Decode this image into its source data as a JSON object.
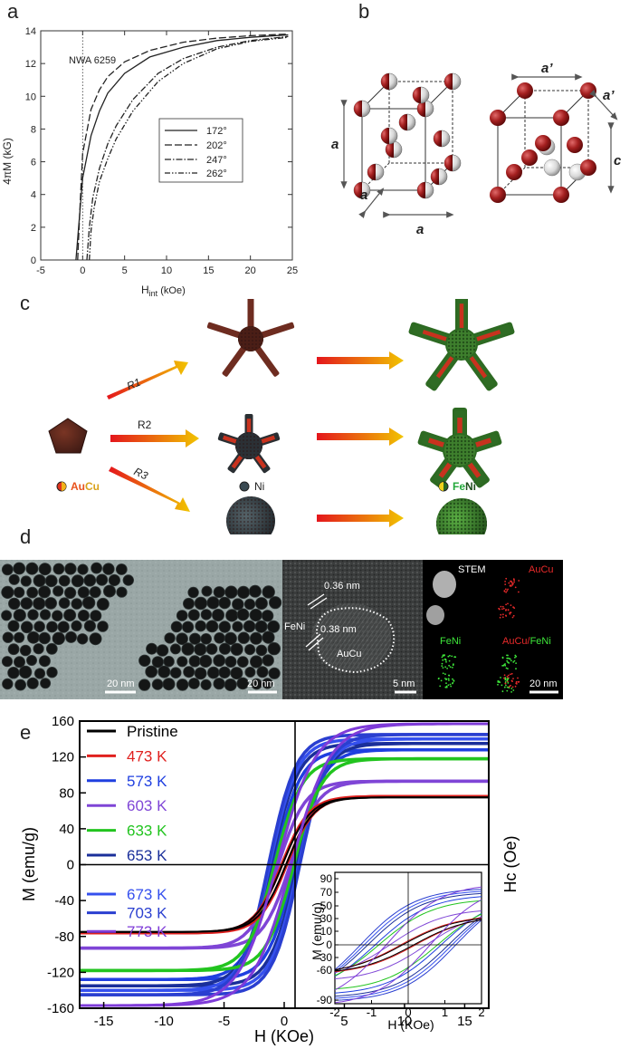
{
  "panel_labels": {
    "a": "a",
    "b": "b",
    "c": "c",
    "d": "d",
    "e": "e"
  },
  "panel_a": {
    "sample_label": "NWA 6259",
    "xlabel": "H",
    "xlabel_sub": "int",
    "xlabel_unit": "(kOe)",
    "ylabel": "4πM (kG)",
    "xticks": [
      "-5",
      "0",
      "5",
      "10",
      "15",
      "20",
      "25"
    ],
    "yticks": [
      "0",
      "2",
      "4",
      "6",
      "8",
      "10",
      "12",
      "14"
    ],
    "legend": [
      "172°",
      "202°",
      "247°",
      "262°"
    ]
  },
  "panel_b": {
    "labels_left": [
      "a",
      "a",
      "a"
    ],
    "labels_right": [
      "a’",
      "a’",
      "c"
    ]
  },
  "panel_c": {
    "routes": [
      "R1",
      "R2",
      "R3"
    ],
    "legend_aucu": [
      "Au",
      "Cu"
    ],
    "legend_ni": "Ni",
    "legend_feni": [
      "Fe",
      "Ni"
    ]
  },
  "panel_d": {
    "scale_bars": [
      "20 nm",
      "20 nm",
      "5 nm",
      "20 nm"
    ],
    "hrtem_labels": {
      "d1": "0.36 nm",
      "d2": "0.38 nm",
      "shell": "FeNi",
      "core": "AuCu"
    },
    "eds_labels": {
      "stem": "STEM",
      "aucu": "AuCu",
      "feni": "FeNi",
      "overlay_a": "AuCu/",
      "overlay_b": "FeNi"
    }
  },
  "panel_e": {
    "ylabel": "M (emu/g)",
    "xlabel": "H (KOe)",
    "right_label": "Hc (Oe)",
    "xticks": [
      "-15",
      "-10",
      "-5",
      "0",
      "5",
      "10",
      "15"
    ],
    "yticks": [
      "160",
      "120",
      "80",
      "40",
      "0",
      "-40",
      "-80",
      "-120",
      "-160"
    ],
    "legend": [
      {
        "label": "Pristine",
        "color": "#000000"
      },
      {
        "label": "473 K",
        "color": "#e0201e"
      },
      {
        "label": "573 K",
        "color": "#1f3fe0"
      },
      {
        "label": "603 K",
        "color": "#7f45d6"
      },
      {
        "label": "633 K",
        "color": "#22c41f"
      },
      {
        "label": "653 K",
        "color": "#1a2f9a"
      },
      {
        "label": "673 K",
        "color": "#3550ee"
      },
      {
        "label": "703 K",
        "color": "#2a3fd0"
      },
      {
        "label": "773 K",
        "color": "#7f3cd8"
      }
    ],
    "inset": {
      "ylabel": "M (emu/g)",
      "xlabel": "H (KOe)",
      "xticks": [
        "-2",
        "-1",
        "0",
        "1",
        "2"
      ],
      "yticks": [
        "90",
        "70",
        "50",
        "30",
        "10",
        "0",
        "-30",
        "-60",
        "-90"
      ]
    }
  },
  "chart_data": [
    {
      "type": "line",
      "title": "",
      "xlabel": "Hint (kOe)",
      "ylabel": "4πM (kG)",
      "xlim": [
        -5,
        25
      ],
      "ylim": [
        0,
        14
      ],
      "grid": false,
      "legend_position": "center-right",
      "series": [
        {
          "name": "172°",
          "x": [
            -0.8,
            -0.4,
            0,
            1,
            2,
            3,
            5,
            8,
            12,
            16,
            20,
            24.5
          ],
          "y": [
            0,
            2.5,
            5,
            7.6,
            9.1,
            10.2,
            11.4,
            12.4,
            13.0,
            13.4,
            13.6,
            13.75
          ]
        },
        {
          "name": "202°",
          "x": [
            -0.6,
            -0.3,
            0,
            1,
            2,
            3,
            5,
            8,
            12,
            16,
            20,
            24.5
          ],
          "y": [
            0,
            3.5,
            6.5,
            9.2,
            10.4,
            11.2,
            12.1,
            12.8,
            13.3,
            13.55,
            13.7,
            13.8
          ]
        },
        {
          "name": "247°",
          "x": [
            0.5,
            0.8,
            1.2,
            2,
            3,
            4,
            6,
            9,
            12,
            16,
            20,
            24.5
          ],
          "y": [
            0,
            2,
            3.8,
            5.6,
            7.1,
            8.2,
            9.8,
            11.4,
            12.3,
            13.0,
            13.4,
            13.65
          ]
        },
        {
          "name": "262°",
          "x": [
            0.8,
            1.0,
            1.4,
            2,
            3,
            4,
            6,
            9,
            12,
            16,
            20,
            24.5
          ],
          "y": [
            0,
            1.8,
            3.3,
            4.8,
            6.2,
            7.4,
            9.1,
            10.9,
            12.0,
            12.9,
            13.35,
            13.6
          ]
        }
      ]
    },
    {
      "type": "line",
      "title": "",
      "xlabel": "H (KOe)",
      "ylabel": "M (emu/g)",
      "xlim": [
        -17,
        17
      ],
      "ylim": [
        -160,
        160
      ],
      "grid": false,
      "legend_position": "top-left",
      "series": [
        {
          "name": "Pristine",
          "Ms": 75,
          "Hc_kOe": 0.15
        },
        {
          "name": "473 K",
          "Ms": 76,
          "Hc_kOe": 0.2
        },
        {
          "name": "573 K",
          "Ms": 128,
          "Hc_kOe": 0.9
        },
        {
          "name": "603 K",
          "Ms": 93,
          "Hc_kOe": 0.5
        },
        {
          "name": "633 K",
          "Ms": 118,
          "Hc_kOe": 0.8
        },
        {
          "name": "653 K",
          "Ms": 135,
          "Hc_kOe": 1.1
        },
        {
          "name": "673 K",
          "Ms": 140,
          "Hc_kOe": 1.2
        },
        {
          "name": "703 K",
          "Ms": 145,
          "Hc_kOe": 1.3
        },
        {
          "name": "773 K",
          "Ms": 157,
          "Hc_kOe": 0.6
        }
      ]
    }
  ]
}
